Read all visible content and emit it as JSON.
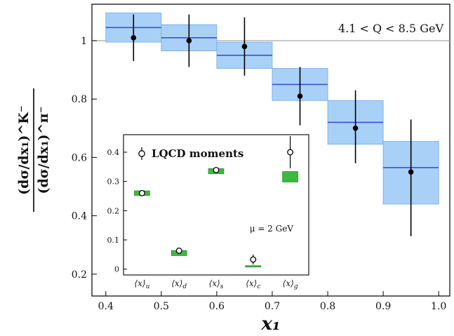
{
  "chart_data": [
    {
      "type": "scatter",
      "title": "",
      "xlabel": "x₁",
      "ylabel_numerator": "(dσ/dx₁)^K⁻",
      "ylabel_denominator": "(dσ/dx₁)^π⁻",
      "annotation": "4.1 < Q < 8.5 GeV",
      "xlim": [
        0.375,
        1.02
      ],
      "ylim": [
        0.125,
        1.125
      ],
      "x_ticks": [
        "0.4",
        "0.5",
        "0.6",
        "0.7",
        "0.8",
        "0.9",
        "1.0"
      ],
      "x_tick_values": [
        0.4,
        0.5,
        0.6,
        0.7,
        0.8,
        0.9,
        1.0
      ],
      "y_ticks": [
        "0.2",
        "0.4",
        "0.6",
        "0.8",
        "1"
      ],
      "y_tick_values": [
        0.2,
        0.4,
        0.6,
        0.8,
        1.0
      ],
      "reference_line_y": 1.0,
      "data_points": [
        {
          "x": 0.45,
          "y": 1.01,
          "err_low": 0.93,
          "err_high": 1.09
        },
        {
          "x": 0.55,
          "y": 1.0,
          "err_low": 0.91,
          "err_high": 1.09
        },
        {
          "x": 0.65,
          "y": 0.98,
          "err_low": 0.88,
          "err_high": 1.08
        },
        {
          "x": 0.75,
          "y": 0.81,
          "err_low": 0.71,
          "err_high": 0.91
        },
        {
          "x": 0.85,
          "y": 0.7,
          "err_low": 0.58,
          "err_high": 0.83
        },
        {
          "x": 0.95,
          "y": 0.55,
          "err_low": 0.33,
          "err_high": 0.73
        }
      ],
      "theory_bands": [
        {
          "x_low": 0.4,
          "x_high": 0.5,
          "y_low": 0.995,
          "y_high": 1.095,
          "central": 1.045
        },
        {
          "x_low": 0.5,
          "x_high": 0.6,
          "y_low": 0.965,
          "y_high": 1.055,
          "central": 1.01
        },
        {
          "x_low": 0.6,
          "x_high": 0.7,
          "y_low": 0.905,
          "y_high": 0.995,
          "central": 0.95
        },
        {
          "x_low": 0.7,
          "x_high": 0.8,
          "y_low": 0.795,
          "y_high": 0.905,
          "central": 0.85
        },
        {
          "x_low": 0.8,
          "x_high": 0.9,
          "y_low": 0.645,
          "y_high": 0.795,
          "central": 0.72
        },
        {
          "x_low": 0.9,
          "x_high": 1.0,
          "y_low": 0.44,
          "y_high": 0.655,
          "central": 0.565
        }
      ]
    },
    {
      "type": "scatter",
      "title": "",
      "legend": "LQCD moments",
      "annotation": "μ = 2 GeV",
      "ylim": [
        -0.02,
        0.46
      ],
      "y_ticks": [
        "0",
        "0.1",
        "0.2",
        "0.3",
        "0.4"
      ],
      "y_tick_values": [
        0.0,
        0.1,
        0.2,
        0.3,
        0.4
      ],
      "categories": [
        "⟨x⟩u",
        "⟨x⟩d",
        "⟨x⟩s",
        "⟨x⟩c",
        "⟨x⟩g"
      ],
      "category_labels": [
        {
          "main": "⟨x⟩",
          "sub": "u"
        },
        {
          "main": "⟨x⟩",
          "sub": "d"
        },
        {
          "main": "⟨x⟩",
          "sub": "s"
        },
        {
          "main": "⟨x⟩",
          "sub": "c"
        },
        {
          "main": "⟨x⟩",
          "sub": "g"
        }
      ],
      "lqcd_points": [
        {
          "y": 0.26,
          "err_low": 0.255,
          "err_high": 0.265
        },
        {
          "y": 0.063,
          "err_low": 0.058,
          "err_high": 0.068
        },
        {
          "y": 0.339,
          "err_low": 0.334,
          "err_high": 0.344
        },
        {
          "y": 0.033,
          "err_low": 0.016,
          "err_high": 0.05
        },
        {
          "y": 0.4,
          "err_low": 0.345,
          "err_high": 0.455
        }
      ],
      "model_bands": [
        {
          "y_low": 0.252,
          "y_high": 0.268
        },
        {
          "y_low": 0.046,
          "y_high": 0.064
        },
        {
          "y_low": 0.326,
          "y_high": 0.344
        },
        {
          "y_low": 0.007,
          "y_high": 0.012
        },
        {
          "y_low": 0.298,
          "y_high": 0.334
        }
      ]
    }
  ],
  "colors": {
    "band_fill": "#a9d1f7",
    "band_stroke": "#6fa9e6",
    "band_central": "#3d4fcf",
    "reference_line": "#a7a7a7",
    "marker": "#000000",
    "inset_band": "#3fb83f",
    "inset_band_stroke": "#1e7a1e"
  }
}
